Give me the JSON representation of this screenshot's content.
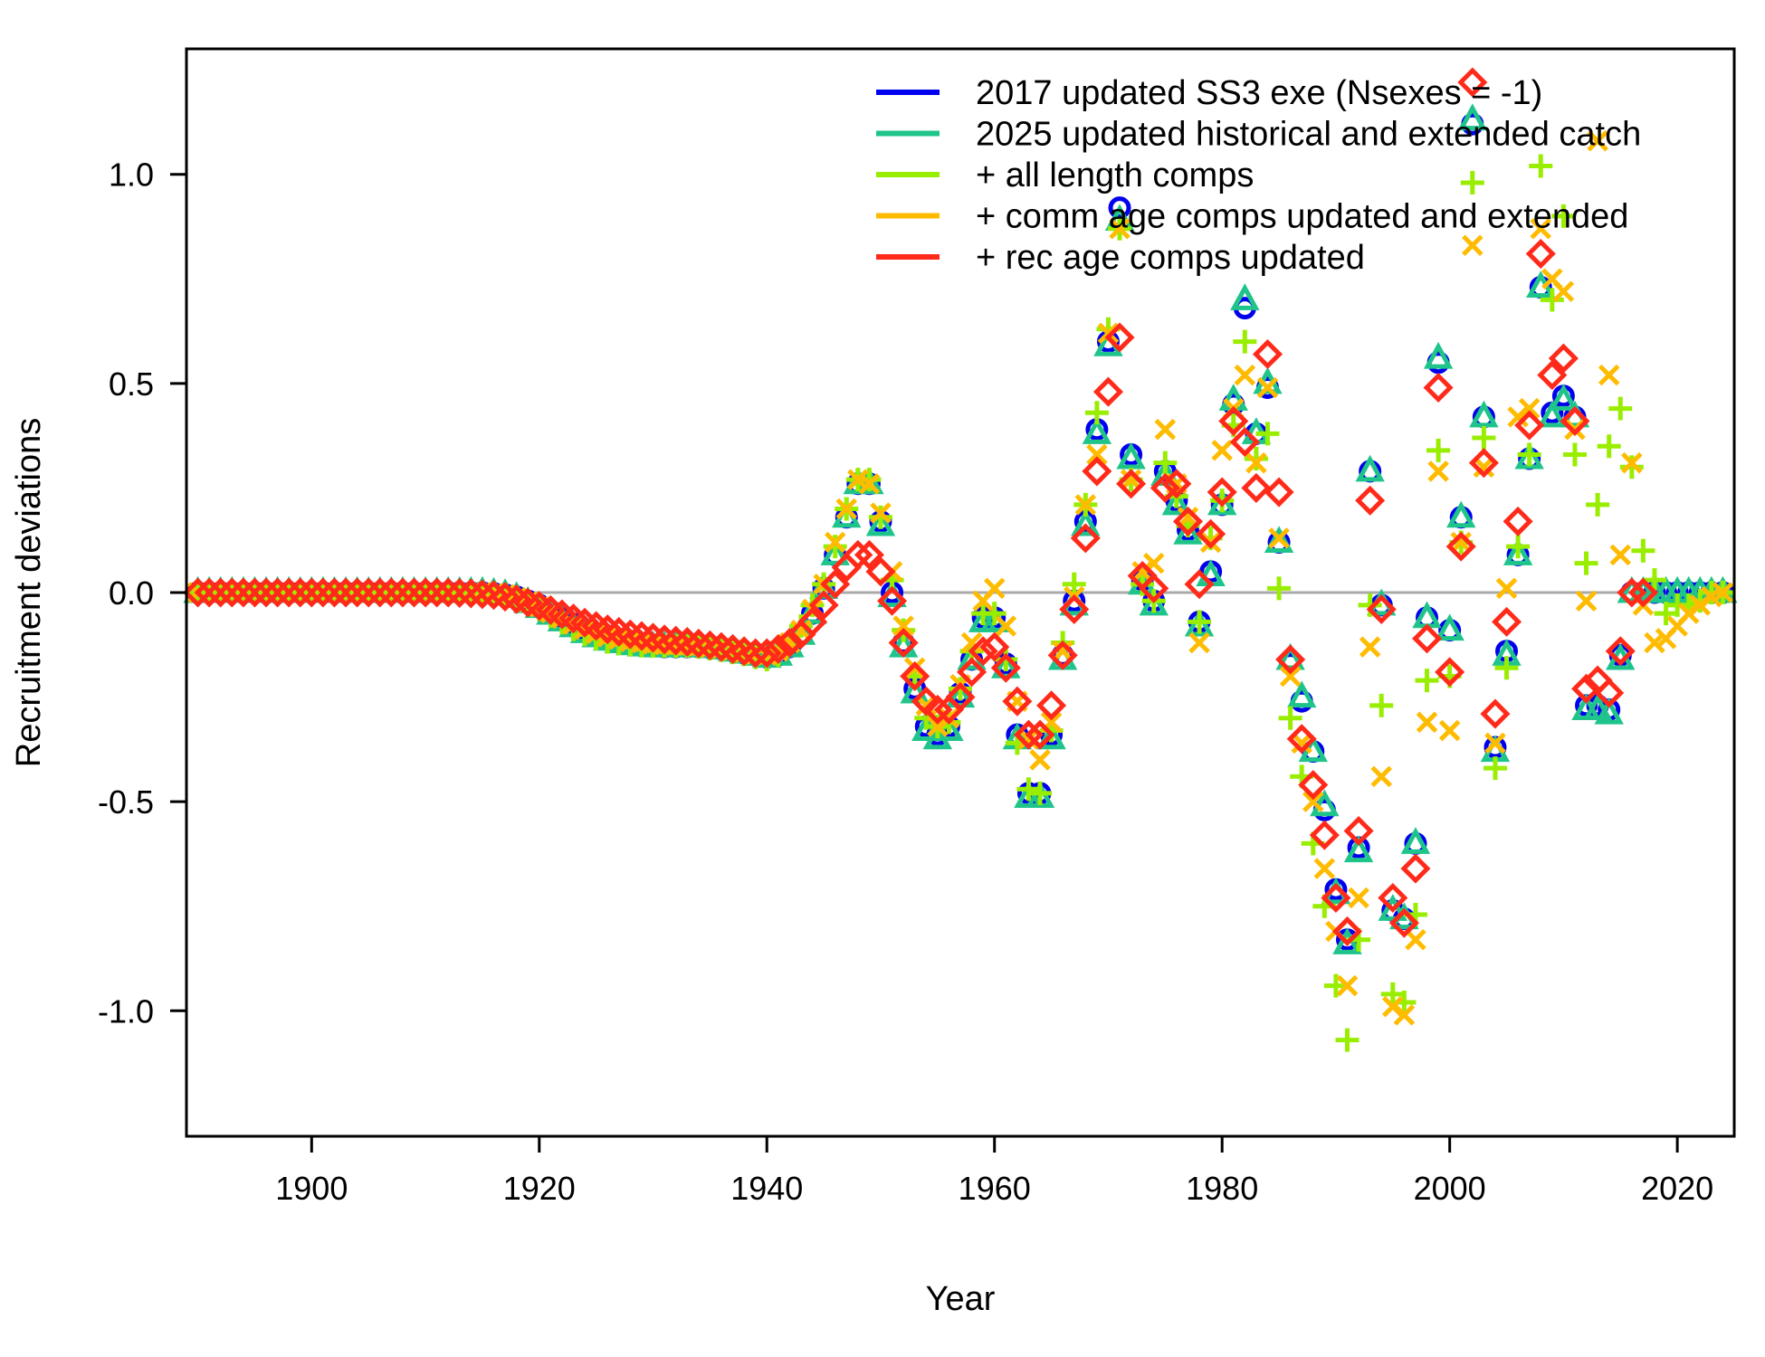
{
  "chart_data": {
    "type": "scatter",
    "title": "",
    "xlabel": "Year",
    "ylabel": "Recruitment deviations",
    "xlim": [
      1889,
      2025
    ],
    "ylim": [
      -1.3,
      1.3
    ],
    "x_ticks": [
      1900,
      1920,
      1940,
      1960,
      1980,
      2000,
      2020
    ],
    "x_tick_labels": [
      "1900",
      "1920",
      "1940",
      "1960",
      "1980",
      "2000",
      "2020"
    ],
    "y_ticks": [
      -1.0,
      -0.5,
      0.0,
      0.5,
      1.0
    ],
    "y_tick_labels": [
      "-1.0",
      "-0.5",
      "0.0",
      "0.5",
      "1.0"
    ],
    "reference_line_y": 0.0,
    "grid": false,
    "legend_position": "top-right",
    "early_years": [
      1890,
      1891,
      1892,
      1893,
      1894,
      1895,
      1896,
      1897,
      1898,
      1899,
      1900,
      1901,
      1902,
      1903,
      1904,
      1905,
      1906,
      1907,
      1908,
      1909,
      1910,
      1911,
      1912,
      1913,
      1914,
      1915,
      1916,
      1917,
      1918,
      1919,
      1920,
      1921,
      1922,
      1923,
      1924,
      1925,
      1926,
      1927,
      1928,
      1929,
      1930,
      1931,
      1932,
      1933,
      1934,
      1935,
      1936,
      1937,
      1938,
      1939,
      1940,
      1941,
      1942,
      1943,
      1944,
      1945,
      1946,
      1947,
      1948,
      1949,
      1950,
      1951,
      1952,
      1953,
      1954,
      1955,
      1956,
      1957,
      1958,
      1959,
      1960,
      1961,
      1962,
      1963,
      1964,
      1965,
      1966,
      1967
    ],
    "main_years": [
      1968,
      1969,
      1970,
      1971,
      1972,
      1973,
      1974,
      1975,
      1976,
      1977,
      1978,
      1979,
      1980,
      1981,
      1982,
      1983,
      1984,
      1985,
      1986,
      1987,
      1988,
      1989,
      1990,
      1991,
      1992,
      1993,
      1994,
      1995,
      1996,
      1997,
      1998,
      1999,
      2000,
      2001,
      2002,
      2003,
      2004,
      2005,
      2006,
      2007,
      2008,
      2009,
      2010,
      2011,
      2012,
      2013,
      2014,
      2015,
      2016,
      2017,
      2018,
      2019,
      2020,
      2021,
      2022,
      2023,
      2024
    ],
    "series": [
      {
        "name": "2017 updated SS3 exe (Nsexes = -1)",
        "color": "#0000ee",
        "marker": "circle",
        "early_values": [
          0,
          0,
          0,
          0,
          0,
          0,
          0,
          0,
          0,
          0,
          0,
          0,
          0,
          0,
          0,
          0,
          0,
          0,
          0,
          0,
          0,
          0,
          0,
          0,
          0,
          0,
          -0.002,
          -0.005,
          -0.01,
          -0.02,
          -0.03,
          -0.045,
          -0.06,
          -0.075,
          -0.09,
          -0.1,
          -0.108,
          -0.115,
          -0.12,
          -0.125,
          -0.128,
          -0.13,
          -0.13,
          -0.13,
          -0.13,
          -0.132,
          -0.135,
          -0.14,
          -0.145,
          -0.15,
          -0.155,
          -0.15,
          -0.13,
          -0.1,
          -0.05,
          0.01,
          0.09,
          0.18,
          0.26,
          0.26,
          0.17,
          0.0,
          -0.12,
          -0.23,
          -0.32,
          -0.34,
          -0.32,
          -0.24,
          -0.16,
          -0.06,
          -0.06,
          -0.17,
          -0.34,
          -0.48,
          -0.48,
          -0.34,
          -0.15,
          -0.02
        ],
        "main_values": [
          0.17,
          0.39,
          0.6,
          0.92,
          0.33,
          0.03,
          -0.02,
          0.29,
          0.22,
          0.15,
          -0.07,
          0.05,
          0.21,
          0.45,
          0.68,
          0.38,
          0.49,
          0.12,
          -0.17,
          -0.26,
          -0.38,
          -0.52,
          -0.71,
          -0.83,
          -0.61,
          0.29,
          -0.03,
          -0.76,
          -0.78,
          -0.6,
          -0.06,
          0.55,
          -0.09,
          0.18,
          1.12,
          0.42,
          -0.37,
          -0.14,
          0.09,
          0.32,
          0.73,
          0.43,
          0.47,
          0.42,
          -0.27,
          -0.27,
          -0.28,
          -0.15,
          0,
          0,
          0,
          0,
          0,
          0,
          0,
          0,
          0
        ]
      },
      {
        "name": "2025 updated historical and extended catch",
        "color": "#1fc48a",
        "marker": "triangle",
        "early_values": [
          0,
          0,
          0,
          0,
          0,
          0,
          0,
          0,
          0,
          0,
          0,
          0,
          0,
          0,
          0,
          0,
          0,
          0,
          0,
          0,
          0,
          0,
          0,
          0,
          0,
          0,
          -0.002,
          -0.005,
          -0.012,
          -0.024,
          -0.036,
          -0.052,
          -0.068,
          -0.082,
          -0.096,
          -0.106,
          -0.114,
          -0.12,
          -0.125,
          -0.128,
          -0.13,
          -0.13,
          -0.13,
          -0.13,
          -0.13,
          -0.132,
          -0.135,
          -0.14,
          -0.145,
          -0.15,
          -0.155,
          -0.15,
          -0.13,
          -0.1,
          -0.05,
          0.01,
          0.09,
          0.18,
          0.26,
          0.26,
          0.16,
          -0.01,
          -0.13,
          -0.24,
          -0.33,
          -0.35,
          -0.33,
          -0.25,
          -0.16,
          -0.07,
          -0.07,
          -0.18,
          -0.35,
          -0.49,
          -0.49,
          -0.35,
          -0.16,
          -0.03
        ],
        "main_values": [
          0.16,
          0.38,
          0.59,
          0.89,
          0.32,
          0.02,
          -0.03,
          0.28,
          0.21,
          0.14,
          -0.08,
          0.04,
          0.21,
          0.46,
          0.7,
          0.38,
          0.5,
          0.12,
          -0.16,
          -0.25,
          -0.38,
          -0.51,
          -0.72,
          -0.84,
          -0.62,
          0.29,
          -0.03,
          -0.76,
          -0.78,
          -0.6,
          -0.06,
          0.56,
          -0.09,
          0.18,
          1.13,
          0.42,
          -0.38,
          -0.15,
          0.09,
          0.32,
          0.73,
          0.42,
          0.46,
          0.42,
          -0.28,
          -0.28,
          -0.29,
          -0.16,
          0,
          0,
          0,
          0,
          0,
          0,
          0,
          0,
          0
        ]
      },
      {
        "name": "+ all length comps",
        "color": "#99ee00",
        "marker": "plus",
        "early_values": [
          0,
          0,
          0,
          0,
          0,
          0,
          0,
          0,
          0,
          0,
          0,
          0,
          0,
          0,
          0,
          0,
          0,
          0,
          0,
          0,
          0,
          0,
          0,
          0,
          0,
          0,
          -0.002,
          -0.006,
          -0.014,
          -0.026,
          -0.04,
          -0.056,
          -0.072,
          -0.088,
          -0.1,
          -0.11,
          -0.118,
          -0.122,
          -0.125,
          -0.127,
          -0.128,
          -0.128,
          -0.128,
          -0.128,
          -0.13,
          -0.134,
          -0.138,
          -0.143,
          -0.148,
          -0.155,
          -0.16,
          -0.15,
          -0.12,
          -0.08,
          -0.03,
          0.02,
          0.11,
          0.2,
          0.27,
          0.27,
          0.18,
          0.03,
          -0.09,
          -0.2,
          -0.3,
          -0.32,
          -0.31,
          -0.23,
          -0.14,
          -0.05,
          -0.05,
          -0.16,
          -0.36,
          -0.47,
          -0.48,
          -0.33,
          -0.12,
          0.02
        ],
        "main_values": [
          0.21,
          0.43,
          0.63,
          0.87,
          0.27,
          0.02,
          -0.02,
          0.31,
          0.23,
          0.16,
          -0.07,
          0.13,
          0.22,
          0.4,
          0.6,
          0.32,
          0.38,
          0.01,
          -0.3,
          -0.44,
          -0.6,
          -0.75,
          -0.94,
          -1.07,
          -0.83,
          -0.03,
          -0.27,
          -0.96,
          -0.98,
          -0.77,
          -0.21,
          0.34,
          -0.2,
          0.12,
          0.98,
          0.37,
          -0.42,
          -0.18,
          0.11,
          0.33,
          1.02,
          0.7,
          0.9,
          0.33,
          0.07,
          0.21,
          0.35,
          0.44,
          0.3,
          0.1,
          0.03,
          -0.05,
          -0.03,
          -0.03,
          -0.02,
          0,
          0
        ]
      },
      {
        "name": "+ comm age comps updated and extended",
        "color": "#ffbb00",
        "marker": "cross",
        "early_values": [
          0,
          0,
          0,
          0,
          0,
          0,
          0,
          0,
          0,
          0,
          0,
          0,
          0,
          0,
          0,
          0,
          0,
          0,
          0,
          0,
          0,
          0,
          0,
          0,
          0,
          0,
          -0.002,
          -0.005,
          -0.012,
          -0.022,
          -0.034,
          -0.048,
          -0.062,
          -0.076,
          -0.088,
          -0.098,
          -0.106,
          -0.112,
          -0.117,
          -0.12,
          -0.123,
          -0.125,
          -0.126,
          -0.127,
          -0.128,
          -0.131,
          -0.134,
          -0.138,
          -0.143,
          -0.148,
          -0.15,
          -0.14,
          -0.12,
          -0.09,
          -0.04,
          0.02,
          0.12,
          0.2,
          0.27,
          0.26,
          0.19,
          0.05,
          -0.08,
          -0.18,
          -0.27,
          -0.32,
          -0.3,
          -0.22,
          -0.12,
          -0.02,
          0.01,
          -0.08,
          -0.26,
          -0.35,
          -0.4,
          -0.31,
          -0.14,
          -0.01
        ],
        "main_values": [
          0.21,
          0.33,
          0.62,
          0.87,
          0.27,
          0.05,
          0.07,
          0.39,
          0.26,
          0.18,
          -0.12,
          0.12,
          0.34,
          0.44,
          0.52,
          0.31,
          0.49,
          0.13,
          -0.2,
          -0.36,
          -0.5,
          -0.66,
          -0.81,
          -0.94,
          -0.73,
          -0.13,
          -0.44,
          -0.99,
          -1.01,
          -0.83,
          -0.31,
          0.29,
          -0.33,
          0.12,
          0.83,
          0.3,
          -0.36,
          0.01,
          0.42,
          0.44,
          0.87,
          0.75,
          0.72,
          0.39,
          -0.02,
          1.08,
          0.52,
          0.09,
          0.31,
          -0.03,
          -0.12,
          -0.11,
          -0.08,
          -0.05,
          -0.03,
          -0.01,
          0
        ]
      },
      {
        "name": "+ rec age comps updated",
        "color": "#ff2a1a",
        "marker": "diamond",
        "early_values": [
          0,
          0,
          0,
          0,
          0,
          0,
          0,
          0,
          0,
          0,
          0,
          0,
          0,
          0,
          0,
          0,
          0,
          0,
          0,
          0,
          0,
          0,
          0,
          -0.001,
          -0.002,
          -0.004,
          -0.006,
          -0.01,
          -0.016,
          -0.024,
          -0.032,
          -0.042,
          -0.052,
          -0.062,
          -0.072,
          -0.08,
          -0.088,
          -0.094,
          -0.1,
          -0.104,
          -0.108,
          -0.112,
          -0.115,
          -0.118,
          -0.122,
          -0.126,
          -0.13,
          -0.135,
          -0.14,
          -0.145,
          -0.145,
          -0.135,
          -0.12,
          -0.1,
          -0.07,
          -0.03,
          0.02,
          0.06,
          0.09,
          0.09,
          0.05,
          -0.02,
          -0.12,
          -0.2,
          -0.26,
          -0.28,
          -0.28,
          -0.25,
          -0.19,
          -0.14,
          -0.13,
          -0.18,
          -0.26,
          -0.34,
          -0.34,
          -0.27,
          -0.15,
          -0.04
        ],
        "main_values": [
          0.13,
          0.29,
          0.48,
          0.61,
          0.26,
          0.04,
          0.01,
          0.25,
          0.26,
          0.17,
          0.02,
          0.14,
          0.24,
          0.41,
          0.36,
          0.25,
          0.57,
          0.24,
          -0.16,
          -0.35,
          -0.46,
          -0.58,
          -0.73,
          -0.81,
          -0.57,
          0.22,
          -0.04,
          -0.73,
          -0.79,
          -0.66,
          -0.11,
          0.49,
          -0.19,
          0.11,
          1.22,
          0.31,
          -0.29,
          -0.07,
          0.17,
          0.4,
          0.81,
          0.52,
          0.56,
          0.41,
          -0.23,
          -0.21,
          -0.24,
          -0.14,
          0,
          0,
          null,
          null,
          null,
          null,
          null,
          null,
          null
        ]
      }
    ]
  }
}
